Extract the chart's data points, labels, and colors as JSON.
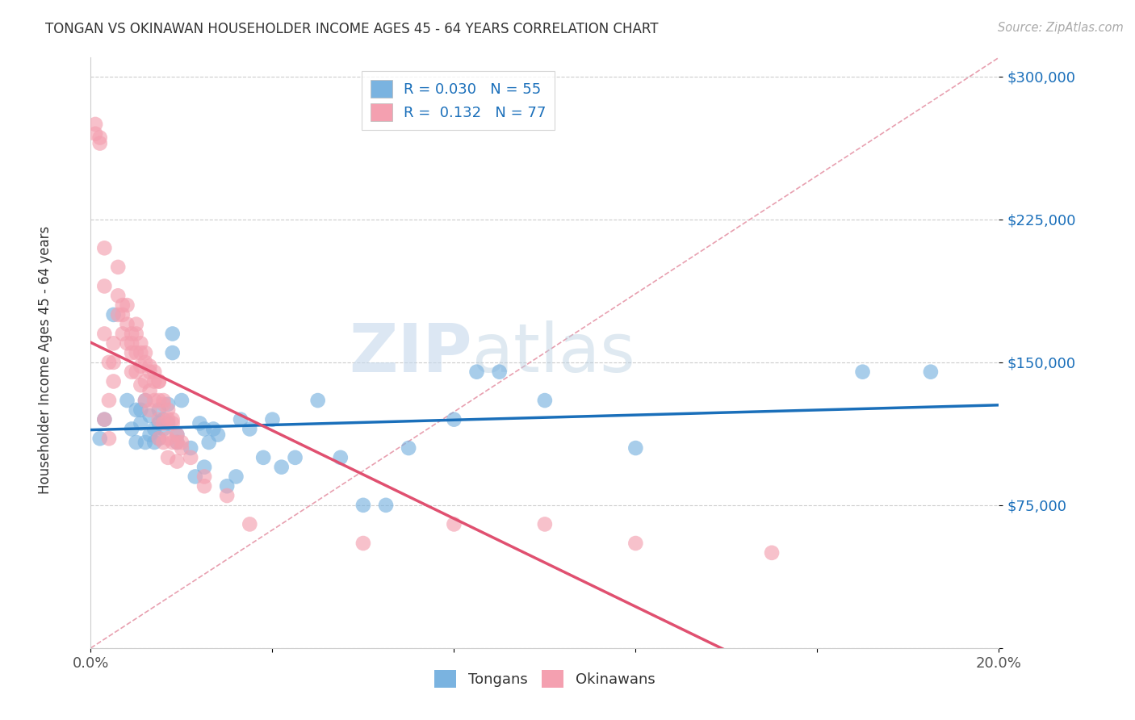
{
  "title": "TONGAN VS OKINAWAN HOUSEHOLDER INCOME AGES 45 - 64 YEARS CORRELATION CHART",
  "source": "Source: ZipAtlas.com",
  "ylabel": "Householder Income Ages 45 - 64 years",
  "y_ticks": [
    0,
    75000,
    150000,
    225000,
    300000
  ],
  "y_tick_labels": [
    "",
    "$75,000",
    "$150,000",
    "$225,000",
    "$300,000"
  ],
  "x_min": 0.0,
  "x_max": 0.2,
  "y_min": 0,
  "y_max": 310000,
  "tongans_R": 0.03,
  "tongans_N": 55,
  "okinawans_R": 0.132,
  "okinawans_N": 77,
  "tongans_color": "#7ab3e0",
  "okinawans_color": "#f4a0b0",
  "tongans_line_color": "#1a6fba",
  "okinawans_line_color": "#e05070",
  "watermark_zip": "ZIP",
  "watermark_atlas": "atlas",
  "tongans_x": [
    0.002,
    0.005,
    0.008,
    0.009,
    0.01,
    0.01,
    0.011,
    0.011,
    0.012,
    0.012,
    0.013,
    0.013,
    0.014,
    0.014,
    0.015,
    0.015,
    0.015,
    0.016,
    0.016,
    0.017,
    0.017,
    0.018,
    0.018,
    0.019,
    0.019,
    0.02,
    0.022,
    0.023,
    0.024,
    0.025,
    0.025,
    0.026,
    0.027,
    0.028,
    0.03,
    0.032,
    0.033,
    0.035,
    0.038,
    0.04,
    0.042,
    0.045,
    0.05,
    0.055,
    0.06,
    0.065,
    0.07,
    0.08,
    0.085,
    0.09,
    0.1,
    0.12,
    0.17,
    0.185,
    0.003
  ],
  "tongans_y": [
    110000,
    175000,
    130000,
    115000,
    125000,
    108000,
    125000,
    118000,
    108000,
    130000,
    112000,
    122000,
    115000,
    108000,
    125000,
    118000,
    110000,
    120000,
    115000,
    128000,
    118000,
    155000,
    165000,
    112000,
    108000,
    130000,
    105000,
    90000,
    118000,
    115000,
    95000,
    108000,
    115000,
    112000,
    85000,
    90000,
    120000,
    115000,
    100000,
    120000,
    95000,
    100000,
    130000,
    100000,
    75000,
    75000,
    105000,
    120000,
    145000,
    145000,
    130000,
    105000,
    145000,
    145000,
    120000
  ],
  "okinawans_x": [
    0.001,
    0.001,
    0.002,
    0.002,
    0.003,
    0.004,
    0.004,
    0.005,
    0.005,
    0.006,
    0.006,
    0.007,
    0.007,
    0.008,
    0.008,
    0.008,
    0.009,
    0.009,
    0.009,
    0.01,
    0.01,
    0.01,
    0.011,
    0.011,
    0.011,
    0.012,
    0.012,
    0.012,
    0.013,
    0.013,
    0.013,
    0.014,
    0.014,
    0.015,
    0.015,
    0.015,
    0.015,
    0.016,
    0.016,
    0.016,
    0.017,
    0.017,
    0.017,
    0.018,
    0.018,
    0.019,
    0.019,
    0.02,
    0.003,
    0.003,
    0.003,
    0.006,
    0.025,
    0.03,
    0.035,
    0.06,
    0.08,
    0.1,
    0.12,
    0.15,
    0.004,
    0.005,
    0.007,
    0.009,
    0.01,
    0.011,
    0.012,
    0.013,
    0.014,
    0.015,
    0.016,
    0.017,
    0.018,
    0.019,
    0.02,
    0.022,
    0.025
  ],
  "okinawans_y": [
    270000,
    275000,
    265000,
    268000,
    120000,
    130000,
    110000,
    150000,
    140000,
    175000,
    185000,
    165000,
    175000,
    180000,
    170000,
    160000,
    155000,
    165000,
    145000,
    165000,
    155000,
    145000,
    155000,
    148000,
    138000,
    150000,
    140000,
    130000,
    145000,
    135000,
    125000,
    140000,
    130000,
    140000,
    130000,
    120000,
    110000,
    128000,
    118000,
    108000,
    120000,
    110000,
    100000,
    118000,
    108000,
    108000,
    98000,
    105000,
    210000,
    190000,
    165000,
    200000,
    85000,
    80000,
    65000,
    55000,
    65000,
    65000,
    55000,
    50000,
    150000,
    160000,
    180000,
    160000,
    170000,
    160000,
    155000,
    148000,
    145000,
    140000,
    130000,
    125000,
    120000,
    112000,
    108000,
    100000,
    90000
  ]
}
